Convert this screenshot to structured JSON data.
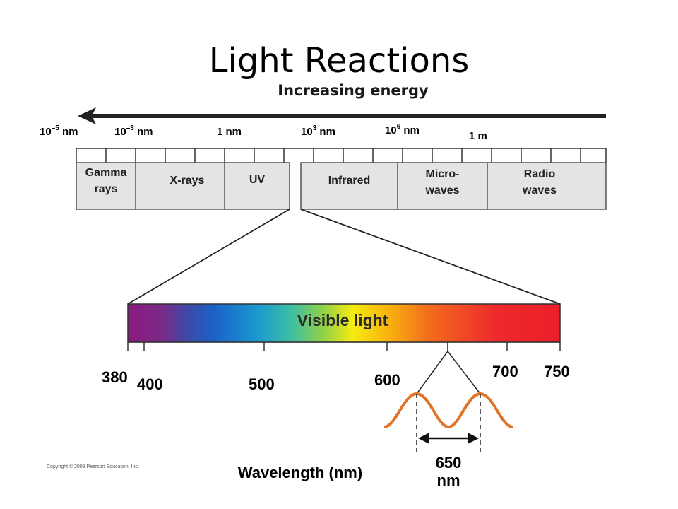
{
  "title": "Light Reactions",
  "energy": {
    "label": "Increasing energy"
  },
  "scale": {
    "marks": [
      {
        "base": "10",
        "exp": "–5",
        "unit": " nm"
      },
      {
        "base": "10",
        "exp": "–3",
        "unit": " nm"
      },
      {
        "base": "1 nm",
        "exp": "",
        "unit": ""
      },
      {
        "base": "10",
        "exp": "3",
        "unit": " nm"
      },
      {
        "base": "10",
        "exp": "6",
        "unit": " nm"
      },
      {
        "base": "1 m",
        "exp": "",
        "unit": ""
      }
    ]
  },
  "bands": [
    {
      "label": "Gamma\nrays"
    },
    {
      "label": "X-rays"
    },
    {
      "label": "UV"
    },
    {
      "label": "Infrared"
    },
    {
      "label": "Micro-\nwaves"
    },
    {
      "label": "Radio\nwaves"
    }
  ],
  "visible": {
    "label": "Visible light",
    "ticks": [
      "380",
      "400",
      "500",
      "600",
      "700",
      "750"
    ],
    "axis_title": "Wavelength (nm)",
    "wave_label": "650\nnm"
  },
  "colors": {
    "band_fill": "#e4e4e6",
    "wave": "#e0742a",
    "arrow": "#222222"
  },
  "copyright": "Copyright © 2009 Pearson Education, Inc."
}
